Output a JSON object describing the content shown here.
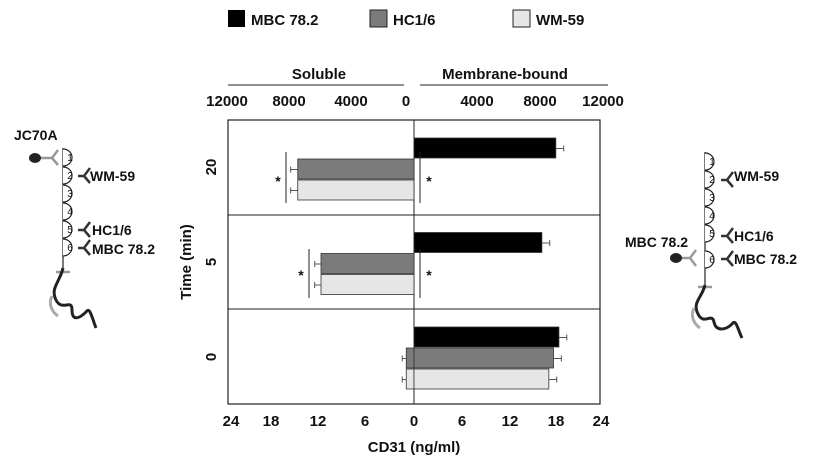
{
  "legend": [
    {
      "name": "MBC 78.2",
      "color": "#000000"
    },
    {
      "name": "HC1/6",
      "color": "#7b7b7b"
    },
    {
      "name": "WM-59",
      "color": "#e6e6e6"
    }
  ],
  "groups": {
    "left": "Soluble",
    "right": "Membrane-bound"
  },
  "axes": {
    "top_ticks_left": [
      "12000",
      "8000",
      "4000",
      "0"
    ],
    "top_ticks_right": [
      "4000",
      "8000",
      "12000"
    ],
    "bottom_ticks_left": [
      "24",
      "18",
      "12",
      "6"
    ],
    "bottom_ticks_right": [
      "0",
      "6",
      "12",
      "18",
      "24"
    ],
    "xlabel": "CD31 (ng/ml)",
    "ylabel": "Time (min)"
  },
  "significance": "*",
  "chart_data": {
    "type": "bar",
    "orientation": "horizontal",
    "xlabel": "CD31 (ng/ml)",
    "ylabel": "Time (min)",
    "xlim": [
      -24,
      24
    ],
    "x_secondary_ticks": [
      12000,
      8000,
      4000,
      0,
      4000,
      8000,
      12000
    ],
    "categories": [
      "20",
      "5",
      "0"
    ],
    "panels": [
      {
        "name": "Soluble",
        "side": "left",
        "series": [
          {
            "name": "MBC 78.2",
            "values": [
              0,
              0,
              0
            ]
          },
          {
            "name": "HC1/6",
            "values": [
              15,
              12,
              1
            ]
          },
          {
            "name": "WM-59",
            "values": [
              15,
              12,
              1
            ]
          }
        ],
        "errors": [
          0.4,
          0.3,
          0
        ]
      },
      {
        "name": "Membrane-bound",
        "side": "right",
        "series": [
          {
            "name": "MBC 78.2",
            "values": [
              18.3,
              16.5,
              18.7
            ]
          },
          {
            "name": "HC1/6",
            "values": [
              0,
              0,
              18
            ]
          },
          {
            "name": "WM-59",
            "values": [
              0,
              0,
              17.4
            ]
          }
        ],
        "errors": [
          0.5,
          0.5,
          0.5
        ]
      }
    ],
    "significant": [
      {
        "category": "20",
        "side": "left"
      },
      {
        "category": "20",
        "side": "right"
      },
      {
        "category": "5",
        "side": "left"
      },
      {
        "category": "5",
        "side": "right"
      }
    ]
  },
  "diagrams": {
    "left": {
      "label_top": "JC70A",
      "domains": [
        "1",
        "2",
        "3",
        "4",
        "5",
        "6"
      ],
      "antibodies": [
        {
          "domain": 2,
          "label": "WM-59"
        },
        {
          "domain": 5,
          "label": "HC1/6"
        },
        {
          "domain": 6,
          "label": "MBC 78.2"
        }
      ]
    },
    "right": {
      "label_side": "MBC 78.2",
      "domains": [
        "1",
        "2",
        "3",
        "4",
        "5",
        "6"
      ],
      "antibodies": [
        {
          "domain": 2,
          "label": "WM-59"
        },
        {
          "domain": 5,
          "label": "HC1/6"
        },
        {
          "domain": 6,
          "label": "MBC 78.2"
        }
      ]
    }
  }
}
